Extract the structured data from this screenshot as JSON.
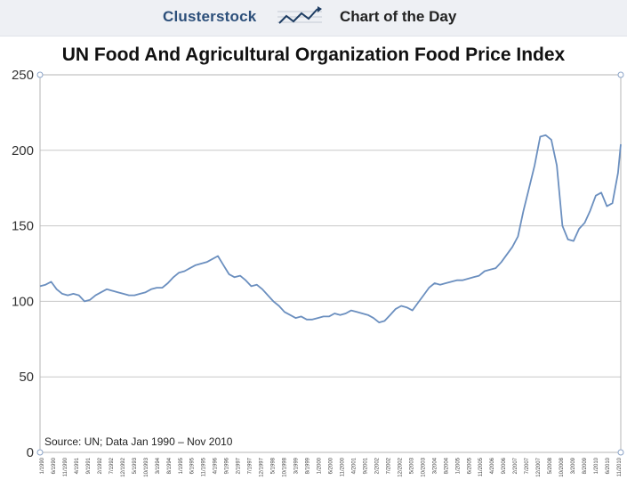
{
  "header": {
    "brand": "Clusterstock",
    "brand_icon": "rising-line-chart-icon",
    "subtitle": "Chart of the Day"
  },
  "chart_data": {
    "type": "line",
    "title": "UN Food And Agricultural Organization Food Price Index",
    "xlabel": "",
    "ylabel": "",
    "ylim": [
      0,
      250
    ],
    "yticks": [
      0,
      50,
      100,
      150,
      200,
      250
    ],
    "grid": true,
    "legend": "none",
    "line_color": "#6b8fbf",
    "annotation": "Source: UN; Data Jan 1990 – Nov 2010",
    "x_tick_labels": [
      "1/1990",
      "6/1990",
      "11/1990",
      "4/1991",
      "9/1991",
      "2/1992",
      "7/1992",
      "12/1992",
      "5/1993",
      "10/1993",
      "3/1994",
      "8/1994",
      "1/1995",
      "6/1995",
      "11/1995",
      "4/1996",
      "9/1996",
      "2/1997",
      "7/1997",
      "12/1997",
      "5/1998",
      "10/1998",
      "3/1999",
      "8/1999",
      "1/2000",
      "6/2000",
      "11/2000",
      "4/2001",
      "9/2001",
      "2/2002",
      "7/2002",
      "12/2002",
      "5/2003",
      "10/2003",
      "3/2004",
      "8/2004",
      "1/2005",
      "6/2005",
      "11/2005",
      "4/2006",
      "9/2006",
      "2/2007",
      "7/2007",
      "12/2007",
      "5/2008",
      "10/2008",
      "3/2009",
      "8/2009",
      "1/2010",
      "6/2010",
      "11/2010"
    ],
    "series": [
      {
        "x": [
          1990.0,
          1990.2,
          1990.4,
          1990.6,
          1990.8,
          1991.0,
          1991.2,
          1991.4,
          1991.6,
          1991.8,
          1992.0,
          1992.2,
          1992.4,
          1992.6,
          1992.8,
          1993.0,
          1993.2,
          1993.4,
          1993.6,
          1993.8,
          1994.0,
          1994.2,
          1994.4,
          1994.6,
          1994.8,
          1995.0,
          1995.2,
          1995.4,
          1995.6,
          1995.8,
          1996.0,
          1996.2,
          1996.4,
          1996.6,
          1996.8,
          1997.0,
          1997.2,
          1997.4,
          1997.6,
          1997.8,
          1998.0,
          1998.2,
          1998.4,
          1998.6,
          1998.8,
          1999.0,
          1999.2,
          1999.4,
          1999.6,
          1999.8,
          2000.0,
          2000.2,
          2000.4,
          2000.6,
          2000.8,
          2001.0,
          2001.2,
          2001.4,
          2001.6,
          2001.8,
          2002.0,
          2002.2,
          2002.4,
          2002.6,
          2002.8,
          2003.0,
          2003.2,
          2003.4,
          2003.6,
          2003.8,
          2004.0,
          2004.2,
          2004.4,
          2004.6,
          2004.8,
          2005.0,
          2005.2,
          2005.4,
          2005.6,
          2005.8,
          2006.0,
          2006.2,
          2006.4,
          2006.6,
          2006.8,
          2007.0,
          2007.2,
          2007.4,
          2007.6,
          2007.8,
          2008.0,
          2008.2,
          2008.4,
          2008.6,
          2008.8,
          2009.0,
          2009.2,
          2009.4,
          2009.6,
          2009.8,
          2010.0,
          2010.2,
          2010.4,
          2010.6,
          2010.8,
          2010.9
        ],
        "values": [
          110,
          111,
          113,
          108,
          105,
          104,
          105,
          104,
          100,
          101,
          104,
          106,
          108,
          107,
          106,
          105,
          104,
          104,
          105,
          106,
          108,
          109,
          109,
          112,
          116,
          119,
          120,
          122,
          124,
          125,
          126,
          128,
          130,
          124,
          118,
          116,
          117,
          114,
          110,
          111,
          108,
          104,
          100,
          97,
          93,
          91,
          89,
          90,
          88,
          88,
          89,
          90,
          90,
          92,
          91,
          92,
          94,
          93,
          92,
          91,
          89,
          86,
          87,
          91,
          95,
          97,
          96,
          94,
          99,
          104,
          109,
          112,
          111,
          112,
          113,
          114,
          114,
          115,
          116,
          117,
          120,
          121,
          122,
          126,
          131,
          136,
          143,
          160,
          175,
          190,
          209,
          210,
          207,
          190,
          150,
          141,
          140,
          148,
          152,
          160,
          170,
          172,
          163,
          165,
          185,
          204
        ]
      }
    ]
  }
}
